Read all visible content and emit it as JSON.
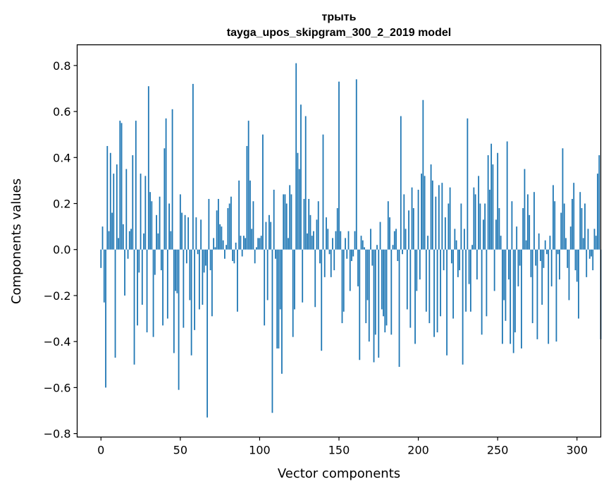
{
  "chart_data": {
    "type": "bar",
    "title": "трыть",
    "subtitle": "tayga_upos_skipgram_300_2_2019 model",
    "xlabel": "Vector components",
    "ylabel": "Components values",
    "xlim": [
      -15,
      315
    ],
    "ylim": [
      -0.815,
      0.89
    ],
    "xticks": [
      0,
      50,
      100,
      150,
      200,
      250,
      300
    ],
    "xtick_labels": [
      "0",
      "50",
      "100",
      "150",
      "200",
      "250",
      "300"
    ],
    "yticks": [
      0.8,
      0.6,
      0.4,
      0.2,
      0.0,
      -0.2,
      -0.4,
      -0.6,
      -0.8
    ],
    "ytick_labels": [
      "0.8",
      "0.6",
      "0.4",
      "0.2",
      "0.0",
      "−0.2",
      "−0.4",
      "−0.6",
      "−0.8"
    ],
    "bar_color": "#1f77b4",
    "grid": false,
    "values": [
      -0.08,
      0.1,
      -0.23,
      -0.6,
      0.45,
      0.08,
      0.42,
      0.16,
      0.33,
      -0.47,
      0.37,
      0.05,
      0.56,
      0.55,
      0.11,
      -0.2,
      0.35,
      -0.04,
      0.08,
      0.09,
      0.41,
      -0.5,
      0.56,
      -0.33,
      -0.1,
      0.33,
      -0.24,
      0.07,
      0.32,
      -0.36,
      0.71,
      0.25,
      0.21,
      -0.38,
      -0.11,
      0.15,
      0.07,
      0.23,
      -0.09,
      -0.33,
      0.44,
      0.57,
      -0.3,
      0.2,
      0.08,
      0.61,
      -0.45,
      -0.18,
      -0.19,
      -0.61,
      0.24,
      0.16,
      -0.34,
      0.15,
      -0.06,
      0.14,
      -0.22,
      -0.46,
      0.72,
      -0.35,
      0.14,
      -0.02,
      -0.26,
      0.13,
      -0.24,
      -0.1,
      -0.07,
      -0.73,
      0.22,
      -0.09,
      -0.29,
      0.05,
      0.01,
      0.17,
      0.22,
      0.11,
      0.1,
      0.04,
      -0.04,
      0.02,
      0.18,
      0.2,
      0.23,
      -0.05,
      -0.06,
      0.03,
      -0.27,
      0.3,
      0.06,
      -0.03,
      0.06,
      0.05,
      0.45,
      0.56,
      0.3,
      0.09,
      0.21,
      -0.06,
      0.01,
      0.05,
      0.05,
      0.06,
      0.5,
      -0.33,
      0.12,
      -0.22,
      0.15,
      0.12,
      -0.71,
      0.26,
      -0.04,
      -0.43,
      -0.43,
      -0.26,
      -0.54,
      0.24,
      0.24,
      0.2,
      0.05,
      0.28,
      0.24,
      -0.38,
      -0.26,
      0.81,
      0.42,
      0.35,
      0.63,
      -0.23,
      0.22,
      0.58,
      0.07,
      0.22,
      0.15,
      0.06,
      0.08,
      -0.25,
      0.13,
      0.21,
      -0.06,
      -0.44,
      0.5,
      -0.12,
      0.14,
      0.09,
      -0.02,
      -0.12,
      0.05,
      -0.09,
      0.08,
      0.18,
      0.73,
      0.08,
      -0.32,
      -0.27,
      0.05,
      -0.04,
      0.08,
      -0.18,
      -0.05,
      -0.03,
      0.08,
      0.74,
      -0.16,
      -0.48,
      0.06,
      0.04,
      0.01,
      -0.32,
      -0.22,
      -0.4,
      0.09,
      -0.07,
      -0.49,
      -0.37,
      0.02,
      -0.47,
      0.12,
      -0.26,
      -0.29,
      -0.36,
      -0.33,
      0.21,
      0.14,
      -0.37,
      0.02,
      0.08,
      0.09,
      -0.05,
      -0.51,
      0.58,
      -0.02,
      0.24,
      0.09,
      -0.26,
      0.17,
      -0.34,
      0.27,
      0.18,
      -0.41,
      -0.18,
      0.26,
      -0.13,
      0.33,
      0.65,
      0.32,
      -0.27,
      0.06,
      -0.32,
      0.37,
      0.3,
      -0.38,
      0.23,
      -0.36,
      0.28,
      -0.29,
      0.29,
      -0.09,
      0.14,
      -0.46,
      0.2,
      0.27,
      -0.06,
      -0.3,
      0.09,
      0.04,
      -0.12,
      -0.09,
      0.2,
      -0.5,
      0.09,
      -0.27,
      0.57,
      -0.15,
      -0.27,
      0.02,
      0.27,
      0.24,
      -0.13,
      0.32,
      0.2,
      -0.37,
      0.13,
      0.2,
      -0.29,
      0.41,
      0.26,
      0.46,
      0.37,
      -0.18,
      0.13,
      0.42,
      0.18,
      0.06,
      -0.41,
      -0.22,
      -0.31,
      0.47,
      -0.13,
      -0.41,
      0.21,
      -0.45,
      -0.36,
      0.1,
      -0.16,
      -0.07,
      -0.43,
      0.18,
      0.35,
      0.04,
      0.24,
      0.15,
      -0.12,
      -0.32,
      0.25,
      -0.07,
      -0.39,
      0.07,
      -0.05,
      -0.24,
      -0.08,
      0.04,
      -0.02,
      -0.41,
      0.06,
      -0.16,
      0.28,
      0.21,
      -0.4,
      -0.02,
      -0.13,
      0.16,
      0.44,
      0.2,
      0.05,
      -0.08,
      -0.22,
      0.1,
      0.22,
      0.29,
      -0.09,
      -0.14,
      -0.3,
      0.25,
      0.18,
      0.05,
      0.2,
      -0.12,
      0.09,
      -0.04,
      -0.03,
      -0.09,
      0.09,
      0.06,
      0.33,
      0.41,
      -0.39
    ]
  }
}
